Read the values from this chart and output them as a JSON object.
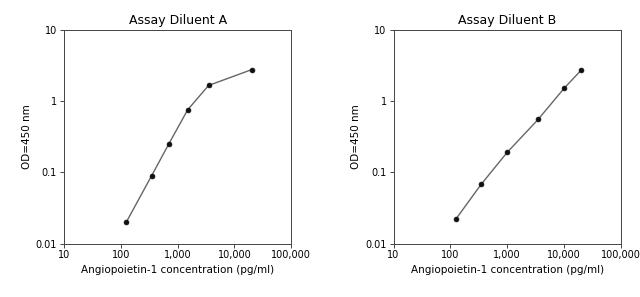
{
  "chart_a": {
    "title": "Assay Diluent A",
    "x": [
      125,
      350,
      700,
      1500,
      3500,
      20000
    ],
    "y": [
      0.02,
      0.09,
      0.25,
      0.75,
      1.65,
      2.75
    ]
  },
  "chart_b": {
    "title": "Assay Diluent B",
    "x": [
      125,
      350,
      1000,
      3500,
      10000,
      20000
    ],
    "y": [
      0.022,
      0.068,
      0.19,
      0.55,
      1.5,
      2.7
    ]
  },
  "xlabel": "Angiopoietin-1 concentration (pg/ml)",
  "ylabel": "OD=450 nm",
  "xlim": [
    10,
    100000
  ],
  "ylim": [
    0.01,
    10
  ],
  "xticks": [
    10,
    100,
    1000,
    10000,
    100000
  ],
  "xticklabels": [
    "10",
    "100",
    "1,000",
    "10,000",
    "100,000"
  ],
  "yticks": [
    0.01,
    0.1,
    1,
    10
  ],
  "yticklabels": [
    "0.01",
    "0.1",
    "1",
    "10"
  ],
  "line_color": "#666666",
  "marker_color": "#111111",
  "marker_size": 3.5,
  "line_width": 1.0,
  "title_fontsize": 9,
  "label_fontsize": 7.5,
  "tick_fontsize": 7,
  "background_color": "#ffffff"
}
